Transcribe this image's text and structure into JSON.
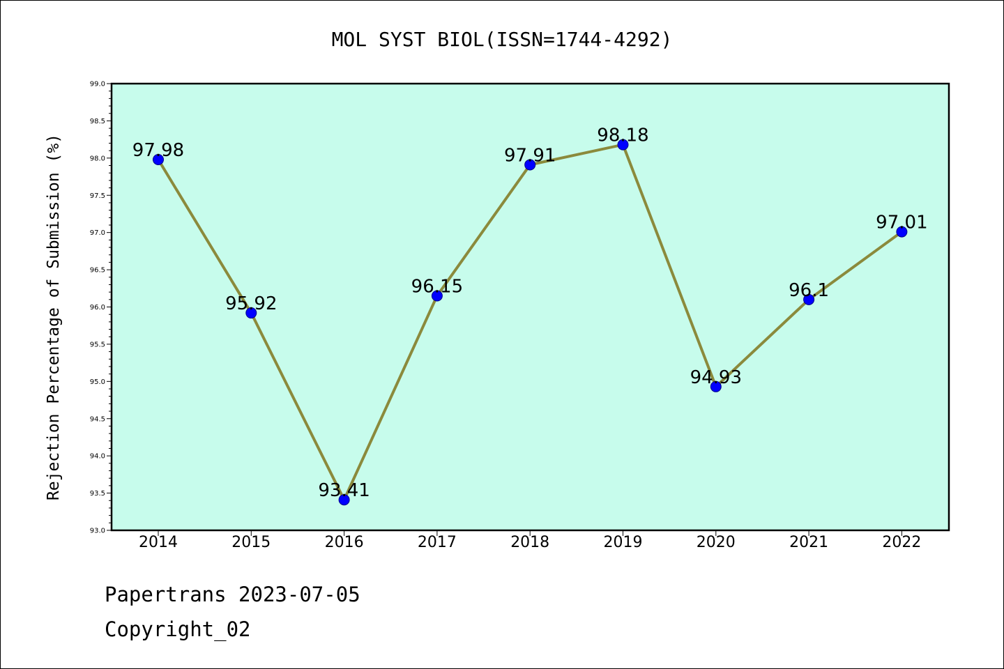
{
  "chart_data": {
    "type": "line",
    "title": "MOL SYST BIOL(ISSN=1744-4292)",
    "xlabel": "",
    "ylabel": "Rejection Percentage of Submission (%)",
    "categories": [
      "2014",
      "2015",
      "2016",
      "2017",
      "2018",
      "2019",
      "2020",
      "2021",
      "2022"
    ],
    "series": [
      {
        "values": [
          97.98,
          95.92,
          93.41,
          96.15,
          97.91,
          98.18,
          94.93,
          96.1,
          97.01
        ],
        "labels": [
          "97.98",
          "95.92",
          "93.41",
          "96.15",
          "97.91",
          "98.18",
          "94.93",
          "96.1",
          "97.01"
        ]
      }
    ],
    "ylim": [
      93.0,
      99.0
    ],
    "yticks": [
      "93.0",
      "93.5",
      "94.0",
      "94.5",
      "95.0",
      "95.5",
      "96.0",
      "96.5",
      "97.0",
      "97.5",
      "98.0",
      "98.5",
      "99.0"
    ],
    "grid": false,
    "legend": "none",
    "colors": {
      "plot_background": "#c7fcec",
      "line": "#8b8a3c",
      "marker": "#0000ff",
      "marker_edge": "#00008b"
    }
  },
  "footer": {
    "line1": "Papertrans 2023-07-05",
    "line2": "Copyright_02"
  }
}
